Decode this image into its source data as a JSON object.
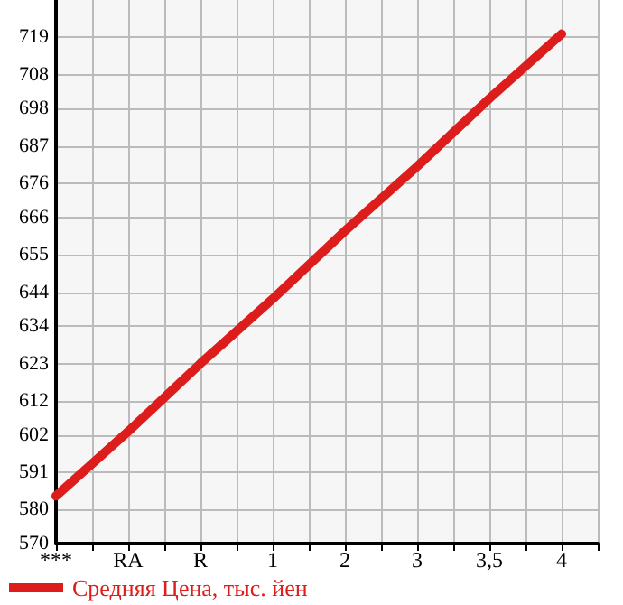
{
  "chart_data": {
    "type": "line",
    "categories": [
      "***",
      "RA",
      "R",
      "1",
      "2",
      "3",
      "3,5",
      "4"
    ],
    "series": [
      {
        "name": "Средняя Цена, тыс. йен",
        "color": "#dd1c1c",
        "values": [
          584,
          603,
          623,
          642,
          662,
          681,
          701,
          720
        ]
      }
    ],
    "ylim": [
      570,
      730
    ],
    "yticks": [
      570,
      580,
      591,
      602,
      612,
      623,
      634,
      644,
      655,
      666,
      676,
      687,
      698,
      708,
      719
    ],
    "grid": true,
    "legend": "bottom left",
    "marker": "none",
    "line_style": "solid"
  }
}
